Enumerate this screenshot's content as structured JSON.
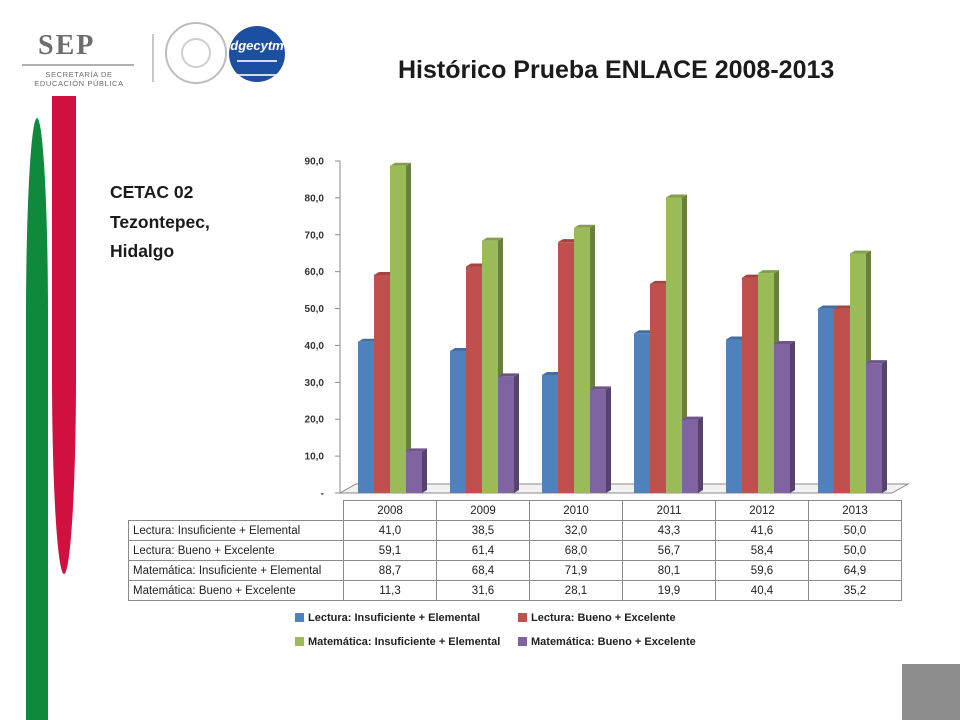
{
  "title": "Histórico Prueba ENLACE 2008-2013",
  "school": {
    "line1": "CETAC 02",
    "line2": "Tezontepec,",
    "line3": "Hidalgo"
  },
  "logos": {
    "sep": "SEP",
    "sep_sub1": "SECRETARÍA DE",
    "sep_sub2": "EDUCACIÓN PÚBLICA",
    "dgecytm": "dgecytm"
  },
  "colors": {
    "green_stripe": "#0f8a3c",
    "red_stripe": "#d0103f"
  },
  "chart_data": {
    "type": "bar",
    "categories": [
      "2008",
      "2009",
      "2010",
      "2011",
      "2012",
      "2013"
    ],
    "series": [
      {
        "name": "Lectura: Insuficiente + Elemental",
        "color": "#4f81bd",
        "values": [
          41.0,
          38.5,
          32.0,
          43.3,
          41.6,
          50.0
        ],
        "labels": [
          "41,0",
          "38,5",
          "32,0",
          "43,3",
          "41,6",
          "50,0"
        ]
      },
      {
        "name": "Lectura: Bueno + Excelente",
        "color": "#c0504d",
        "values": [
          59.1,
          61.4,
          68.0,
          56.7,
          58.4,
          50.0
        ],
        "labels": [
          "59,1",
          "61,4",
          "68,0",
          "56,7",
          "58,4",
          "50,0"
        ]
      },
      {
        "name": "Matemática: Insuficiente + Elemental",
        "color": "#9bbb59",
        "values": [
          88.7,
          68.4,
          71.9,
          80.1,
          59.6,
          64.9
        ],
        "labels": [
          "88,7",
          "68,4",
          "71,9",
          "80,1",
          "59,6",
          "64,9"
        ]
      },
      {
        "name": "Matemática: Bueno + Excelente",
        "color": "#8064a2",
        "values": [
          11.3,
          31.6,
          28.1,
          19.9,
          40.4,
          35.2
        ],
        "labels": [
          "11,3",
          "31,6",
          "28,1",
          "19,9",
          "40,4",
          "35,2"
        ]
      }
    ],
    "ylim": [
      0,
      90
    ],
    "yticks": [
      0,
      10,
      20,
      30,
      40,
      50,
      60,
      70,
      80,
      90
    ],
    "ytick_labels": [
      "-",
      "10,0",
      "20,0",
      "30,0",
      "40,0",
      "50,0",
      "60,0",
      "70,0",
      "80,0",
      "90,0"
    ],
    "legend_position": "bottom",
    "data_table": true,
    "grid": false
  }
}
